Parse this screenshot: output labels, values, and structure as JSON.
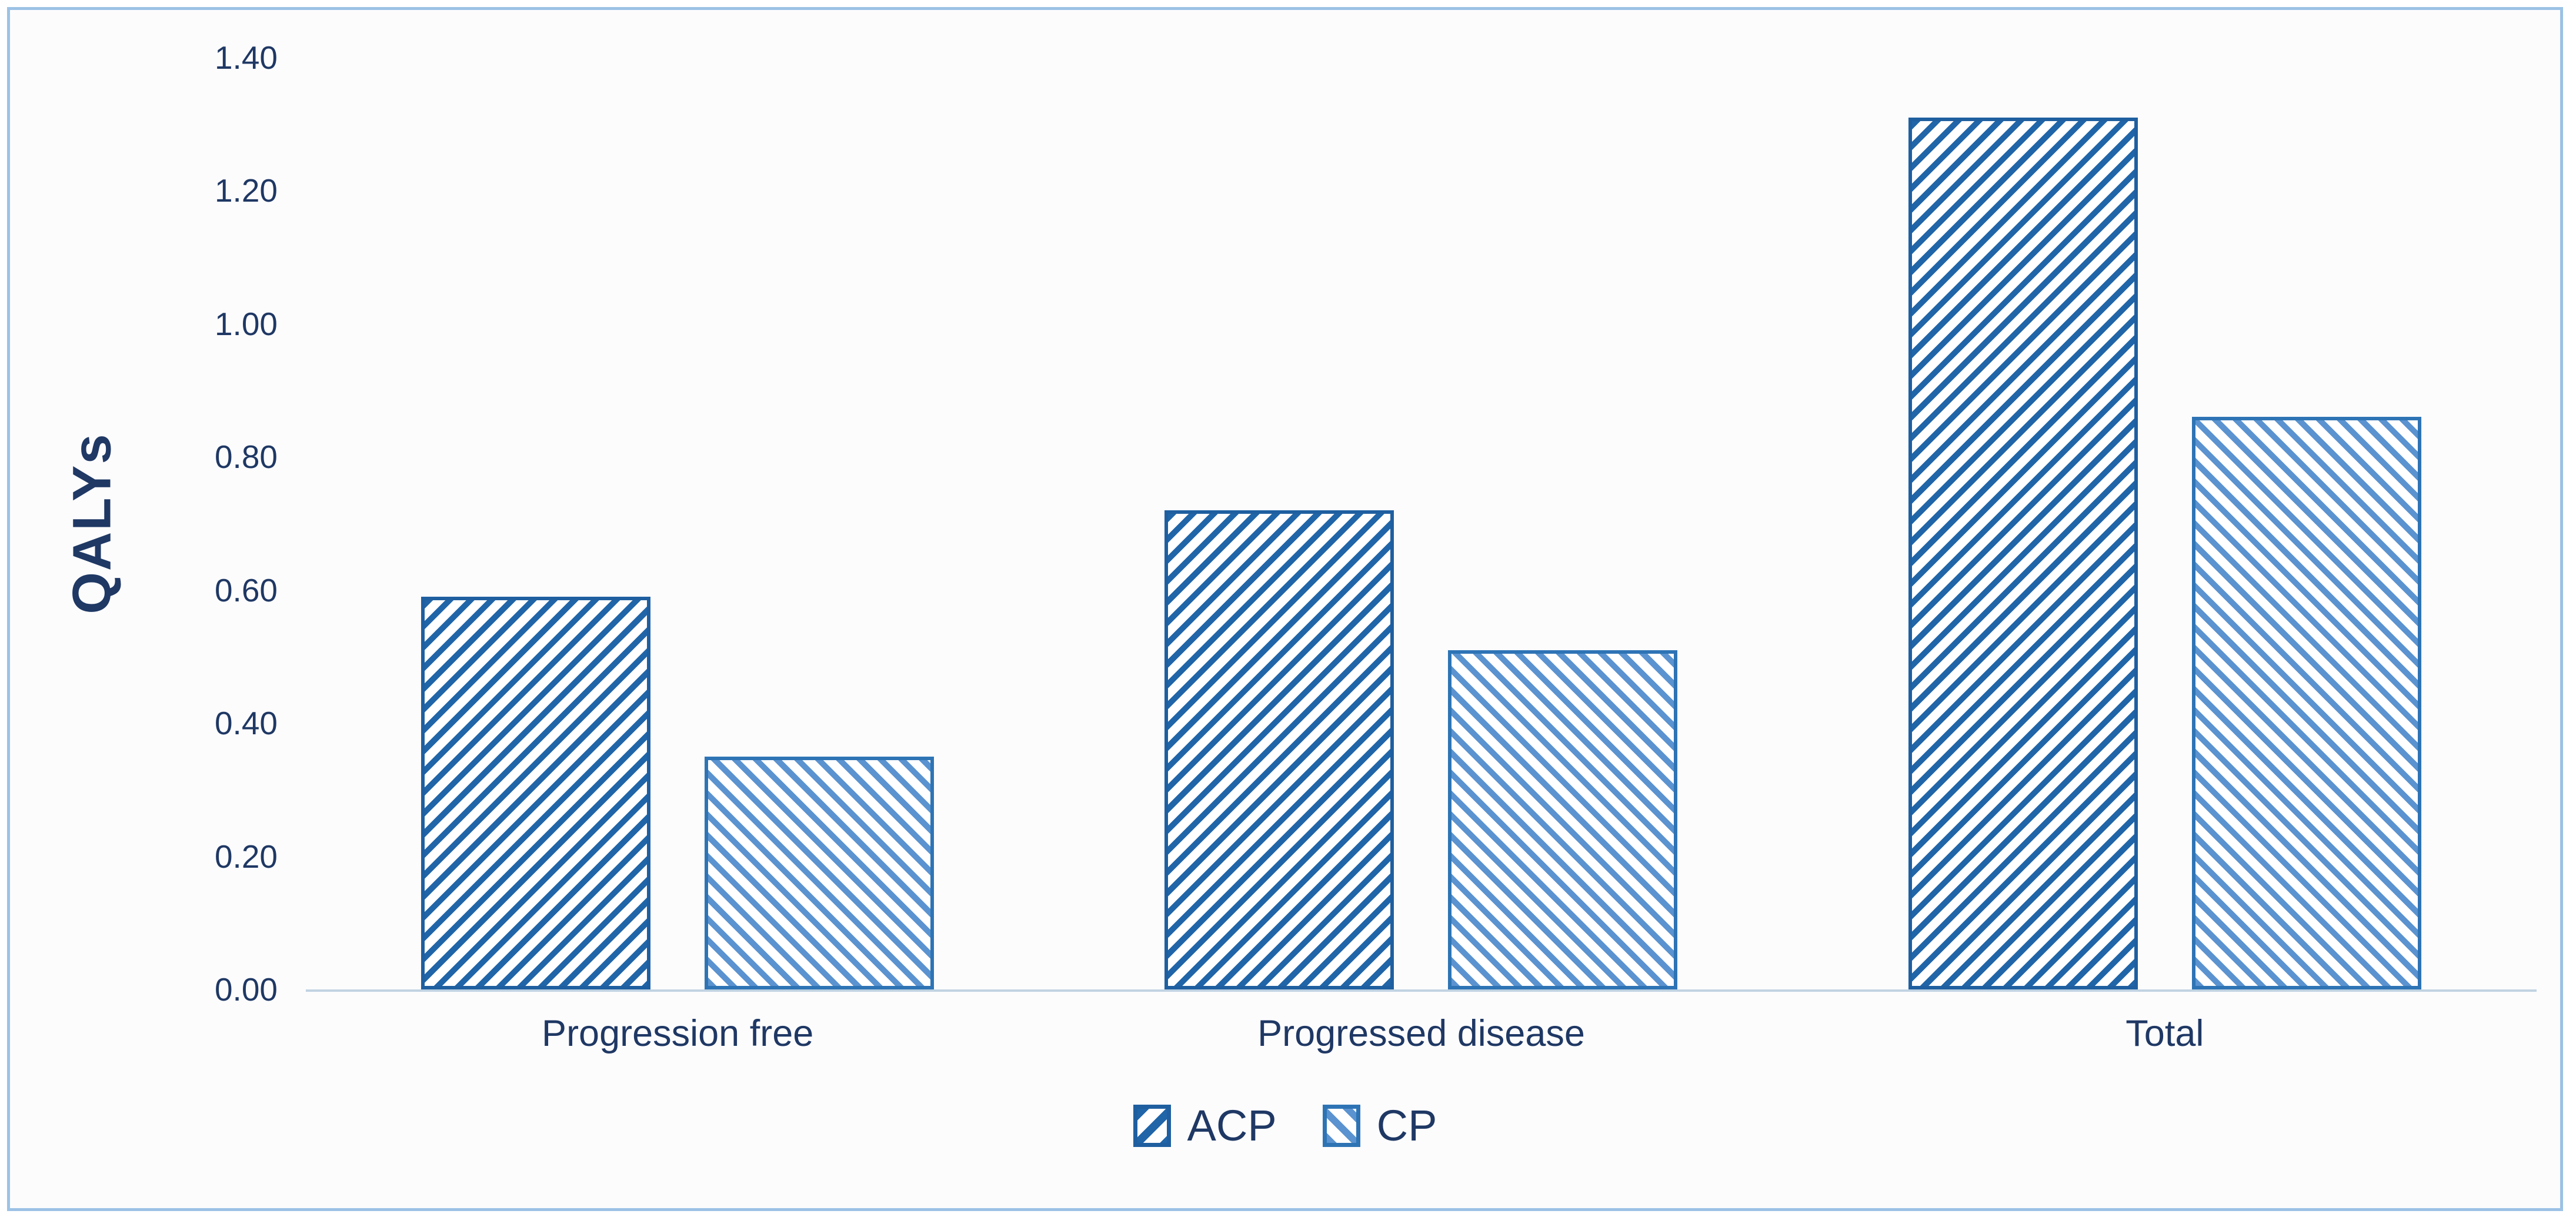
{
  "y_axis": {
    "title": "QALYs",
    "tick_labels": [
      "1.40",
      "1.20",
      "1.00",
      "0.80",
      "0.60",
      "0.40",
      "0.20",
      "0.00"
    ]
  },
  "chart_data": {
    "type": "bar",
    "title": "",
    "xlabel": "",
    "ylabel": "QALYs",
    "categories": [
      "Progression free",
      "Progressed disease",
      "Total"
    ],
    "series": [
      {
        "name": "ACP",
        "values": [
          0.59,
          0.72,
          1.31
        ],
        "hatch": "diagonal-up",
        "stripe_color": "#2065A8",
        "border_color": "#1F5FA0"
      },
      {
        "name": "CP",
        "values": [
          0.35,
          0.51,
          0.86
        ],
        "hatch": "diagonal-down",
        "stripe_color": "#5B93D0",
        "border_color": "#2E74B5"
      }
    ],
    "ylim": [
      0,
      1.4
    ],
    "ytick_step": 0.2,
    "grid": false,
    "legend_position": "bottom-center"
  },
  "colors": {
    "text": "#1F3864",
    "axis_line": "#C0D3E2",
    "frame_border": "#9CC2E5",
    "background": "#FCFCFD"
  }
}
